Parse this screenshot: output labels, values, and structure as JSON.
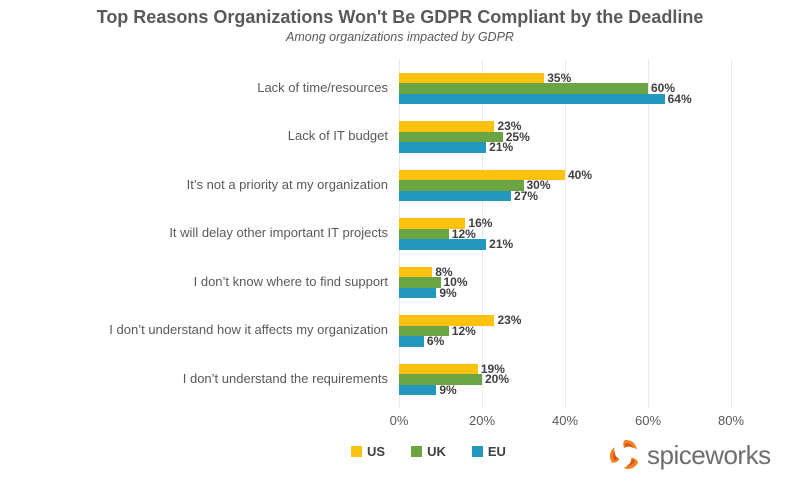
{
  "title": "Top Reasons Organizations Won't Be GDPR Compliant by the Deadline",
  "subtitle": "Among organizations impacted by GDPR",
  "chart_data": {
    "type": "bar",
    "orientation": "horizontal",
    "title": "Top Reasons Organizations Won't Be GDPR Compliant by the Deadline",
    "subtitle": "Among organizations impacted by GDPR",
    "categories": [
      "Lack of time/resources",
      "Lack of IT budget",
      "It’s not a priority at my organization",
      "It will delay other important IT projects",
      "I don’t know where to find support",
      "I don’t understand how it affects my organization",
      "I don’t understand the requirements"
    ],
    "series": [
      {
        "name": "US",
        "color": "#fdc110",
        "values": [
          35,
          23,
          40,
          16,
          8,
          23,
          19
        ]
      },
      {
        "name": "UK",
        "color": "#6ba443",
        "values": [
          60,
          25,
          30,
          12,
          10,
          12,
          20
        ]
      },
      {
        "name": "EU",
        "color": "#2397bd",
        "values": [
          64,
          21,
          27,
          21,
          9,
          6,
          9
        ]
      }
    ],
    "x_ticks": [
      "0%",
      "20%",
      "40%",
      "60%",
      "80%"
    ],
    "xlim": [
      0,
      80
    ],
    "value_suffix": "%",
    "grid": "vertical",
    "gridline_color": "#e9e9e9",
    "legend_position": "bottom",
    "xlabel": "",
    "ylabel": ""
  },
  "branding": {
    "wordmark": "spiceworks",
    "icon": "spiceworks-pinwheel-icon",
    "icon_color": "#f58220",
    "icon_accent_color": "#d9531e",
    "text_color": "#6d6e71"
  }
}
